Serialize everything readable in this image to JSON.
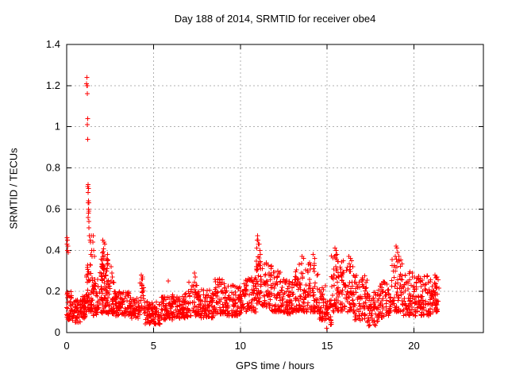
{
  "chart_data": {
    "type": "scatter",
    "title": "Day 188 of 2014, SRMTID for receiver obe4",
    "xlabel": "GPS time / hours",
    "ylabel": "SRMTID / TECUs",
    "xlim": [
      0,
      24
    ],
    "ylim": [
      0,
      1.4
    ],
    "grid": true,
    "legend": "none",
    "marker": "plus",
    "marker_color": "#ff0000",
    "grid_color": "#b0b0b0",
    "border_color": "#000000",
    "x_ticks": [
      {
        "v": 0,
        "label": "0"
      },
      {
        "v": 5,
        "label": "5"
      },
      {
        "v": 10,
        "label": "10"
      },
      {
        "v": 15,
        "label": "15"
      },
      {
        "v": 20,
        "label": "20"
      }
    ],
    "y_ticks": [
      {
        "v": 0,
        "label": "0"
      },
      {
        "v": 0.2,
        "label": "0.2"
      },
      {
        "v": 0.4,
        "label": "0.4"
      },
      {
        "v": 0.6,
        "label": "0.6"
      },
      {
        "v": 0.8,
        "label": "0.8"
      },
      {
        "v": 1.0,
        "label": "1"
      },
      {
        "v": 1.2,
        "label": "1.2"
      },
      {
        "v": 1.4,
        "label": "1.4"
      }
    ],
    "data_x_start": 0.0,
    "data_x_end": 21.45,
    "seed": 42,
    "band_segments": [
      [
        0.0,
        0.3,
        0.06,
        0.2,
        40
      ],
      [
        0.3,
        0.8,
        0.05,
        0.16,
        55
      ],
      [
        0.8,
        1.1,
        0.07,
        0.18,
        38
      ],
      [
        1.1,
        1.5,
        0.1,
        0.33,
        55
      ],
      [
        1.5,
        1.85,
        0.08,
        0.26,
        40
      ],
      [
        1.85,
        2.45,
        0.09,
        0.24,
        55
      ],
      [
        1.9,
        2.4,
        0.24,
        0.42,
        48
      ],
      [
        2.45,
        2.75,
        0.09,
        0.26,
        30
      ],
      [
        2.75,
        3.6,
        0.08,
        0.2,
        85
      ],
      [
        3.6,
        4.2,
        0.07,
        0.17,
        60
      ],
      [
        4.2,
        4.45,
        0.11,
        0.27,
        22
      ],
      [
        4.45,
        5.4,
        0.04,
        0.15,
        90
      ],
      [
        5.4,
        6.1,
        0.06,
        0.18,
        68
      ],
      [
        6.1,
        7.0,
        0.07,
        0.19,
        88
      ],
      [
        7.0,
        7.6,
        0.08,
        0.25,
        58
      ],
      [
        7.6,
        8.5,
        0.07,
        0.21,
        88
      ],
      [
        8.5,
        9.2,
        0.09,
        0.26,
        68
      ],
      [
        9.2,
        10.2,
        0.08,
        0.23,
        98
      ],
      [
        10.2,
        10.9,
        0.1,
        0.27,
        68
      ],
      [
        10.9,
        11.3,
        0.13,
        0.37,
        48
      ],
      [
        11.3,
        11.8,
        0.12,
        0.34,
        52
      ],
      [
        11.8,
        12.4,
        0.1,
        0.3,
        58
      ],
      [
        12.4,
        13.1,
        0.09,
        0.26,
        68
      ],
      [
        13.1,
        13.9,
        0.1,
        0.34,
        82
      ],
      [
        13.9,
        14.5,
        0.1,
        0.36,
        58
      ],
      [
        14.5,
        14.95,
        0.06,
        0.24,
        44
      ],
      [
        14.95,
        15.25,
        0.02,
        0.16,
        28
      ],
      [
        15.25,
        15.75,
        0.1,
        0.38,
        52
      ],
      [
        15.75,
        16.55,
        0.1,
        0.35,
        82
      ],
      [
        16.55,
        17.3,
        0.06,
        0.28,
        68
      ],
      [
        17.3,
        17.95,
        0.03,
        0.2,
        58
      ],
      [
        17.95,
        18.6,
        0.07,
        0.26,
        58
      ],
      [
        18.6,
        19.35,
        0.1,
        0.36,
        72
      ],
      [
        19.35,
        20.2,
        0.08,
        0.3,
        78
      ],
      [
        20.2,
        21.0,
        0.08,
        0.28,
        78
      ],
      [
        21.0,
        21.45,
        0.1,
        0.27,
        44
      ]
    ],
    "outliers": [
      [
        0.02,
        0.46
      ],
      [
        0.03,
        0.43
      ],
      [
        0.05,
        0.45
      ],
      [
        0.05,
        0.4
      ],
      [
        0.07,
        0.42
      ],
      [
        0.08,
        0.39
      ],
      [
        1.15,
        1.21
      ],
      [
        1.17,
        1.24
      ],
      [
        1.18,
        1.2
      ],
      [
        1.16,
        1.2
      ],
      [
        1.19,
        1.16
      ],
      [
        1.2,
        1.04
      ],
      [
        1.18,
        1.01
      ],
      [
        1.21,
        0.94
      ],
      [
        1.24,
        0.72
      ],
      [
        1.22,
        0.71
      ],
      [
        1.25,
        0.7
      ],
      [
        1.23,
        0.68
      ],
      [
        1.26,
        0.64
      ],
      [
        1.24,
        0.63
      ],
      [
        1.27,
        0.63
      ],
      [
        1.25,
        0.6
      ],
      [
        1.28,
        0.59
      ],
      [
        1.26,
        0.58
      ],
      [
        1.24,
        0.56
      ],
      [
        1.28,
        0.54
      ],
      [
        1.27,
        0.51
      ],
      [
        1.3,
        0.47
      ],
      [
        1.34,
        0.45
      ],
      [
        1.37,
        0.44
      ],
      [
        1.41,
        0.47
      ],
      [
        1.43,
        0.4
      ],
      [
        1.39,
        0.38
      ],
      [
        1.46,
        0.37
      ],
      [
        1.52,
        0.47
      ],
      [
        1.51,
        0.44
      ],
      [
        1.56,
        0.4
      ],
      [
        1.59,
        0.37
      ],
      [
        2.08,
        0.45
      ],
      [
        2.15,
        0.44
      ],
      [
        2.2,
        0.43
      ],
      [
        2.56,
        0.32
      ],
      [
        2.6,
        0.29
      ],
      [
        2.63,
        0.27
      ],
      [
        4.3,
        0.28
      ],
      [
        4.33,
        0.26
      ],
      [
        5.85,
        0.25
      ],
      [
        7.35,
        0.29
      ],
      [
        7.4,
        0.27
      ],
      [
        8.8,
        0.26
      ],
      [
        10.98,
        0.45
      ],
      [
        11.0,
        0.47
      ],
      [
        11.02,
        0.45
      ],
      [
        11.05,
        0.43
      ],
      [
        10.95,
        0.41
      ],
      [
        11.08,
        0.43
      ],
      [
        11.12,
        0.4
      ],
      [
        11.15,
        0.38
      ],
      [
        13.55,
        0.37
      ],
      [
        13.65,
        0.36
      ],
      [
        14.2,
        0.38
      ],
      [
        14.28,
        0.36
      ],
      [
        15.42,
        0.37
      ],
      [
        15.46,
        0.41
      ],
      [
        15.52,
        0.4
      ],
      [
        15.57,
        0.38
      ],
      [
        16.25,
        0.37
      ],
      [
        16.35,
        0.36
      ],
      [
        18.92,
        0.37
      ],
      [
        18.96,
        0.42
      ],
      [
        19.02,
        0.41
      ],
      [
        19.06,
        0.39
      ],
      [
        19.12,
        0.37
      ],
      [
        21.2,
        0.28
      ],
      [
        21.3,
        0.27
      ]
    ]
  }
}
